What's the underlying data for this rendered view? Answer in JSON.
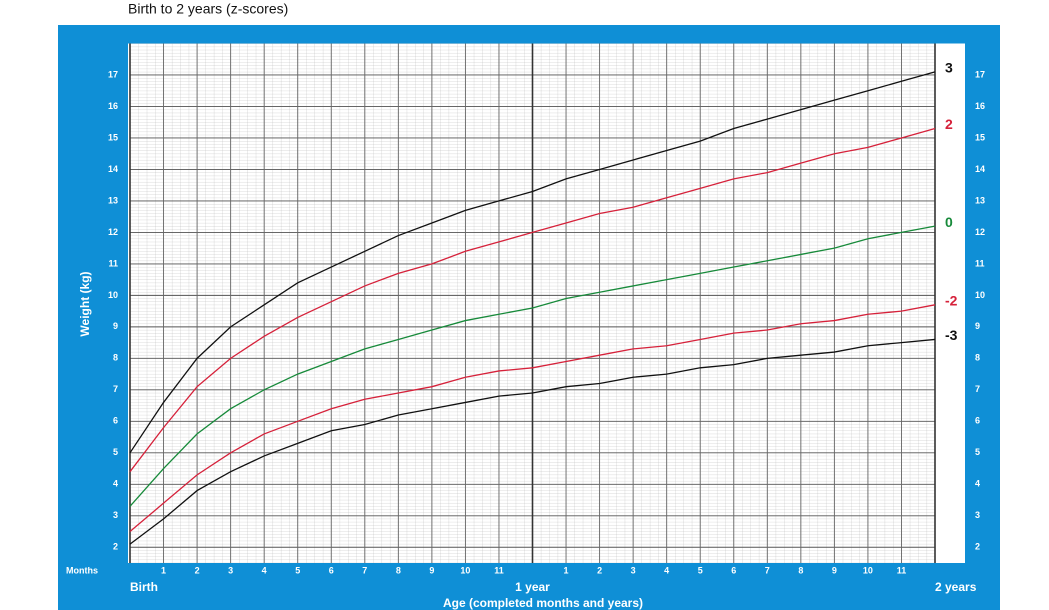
{
  "chart_data": {
    "type": "line",
    "subtitle": "Birth to 2 years (z-scores)",
    "x_label": "Age (completed months and years)",
    "y_label": "Weight (kg)",
    "x_unit_label": "Months",
    "x": [
      0,
      1,
      2,
      3,
      4,
      5,
      6,
      7,
      8,
      9,
      10,
      11,
      12,
      13,
      14,
      15,
      16,
      17,
      18,
      19,
      20,
      21,
      22,
      23,
      24
    ],
    "xlim": [
      0,
      24
    ],
    "ylim": [
      1.5,
      18
    ],
    "xticks": [
      {
        "value": 0,
        "label": "Birth"
      },
      1,
      2,
      3,
      4,
      5,
      6,
      7,
      8,
      9,
      10,
      11,
      {
        "value": 12,
        "label": "1 year"
      },
      {
        "value": 13,
        "label": "1"
      },
      {
        "value": 14,
        "label": "2"
      },
      {
        "value": 15,
        "label": "3"
      },
      {
        "value": 16,
        "label": "4"
      },
      {
        "value": 17,
        "label": "5"
      },
      {
        "value": 18,
        "label": "6"
      },
      {
        "value": 19,
        "label": "7"
      },
      {
        "value": 20,
        "label": "8"
      },
      {
        "value": 21,
        "label": "9"
      },
      {
        "value": 22,
        "label": "10"
      },
      {
        "value": 23,
        "label": "11"
      },
      {
        "value": 24,
        "label": "2 years"
      }
    ],
    "yticks": [
      2,
      3,
      4,
      5,
      6,
      7,
      8,
      9,
      10,
      11,
      12,
      13,
      14,
      15,
      16,
      17
    ],
    "grid": true,
    "series": [
      {
        "name": "3",
        "color": "#111111",
        "values": [
          5.0,
          6.6,
          8.0,
          9.0,
          9.7,
          10.4,
          10.9,
          11.4,
          11.9,
          12.3,
          12.7,
          13.0,
          13.3,
          13.7,
          14.0,
          14.3,
          14.6,
          14.9,
          15.3,
          15.6,
          15.9,
          16.2,
          16.5,
          16.8,
          17.1
        ]
      },
      {
        "name": "2",
        "color": "#d6213a",
        "values": [
          4.4,
          5.8,
          7.1,
          8.0,
          8.7,
          9.3,
          9.8,
          10.3,
          10.7,
          11.0,
          11.4,
          11.7,
          12.0,
          12.3,
          12.6,
          12.8,
          13.1,
          13.4,
          13.7,
          13.9,
          14.2,
          14.5,
          14.7,
          15.0,
          15.3
        ]
      },
      {
        "name": "0",
        "color": "#178a3a",
        "values": [
          3.3,
          4.5,
          5.6,
          6.4,
          7.0,
          7.5,
          7.9,
          8.3,
          8.6,
          8.9,
          9.2,
          9.4,
          9.6,
          9.9,
          10.1,
          10.3,
          10.5,
          10.7,
          10.9,
          11.1,
          11.3,
          11.5,
          11.8,
          12.0,
          12.2
        ]
      },
      {
        "name": "-2",
        "color": "#d6213a",
        "values": [
          2.5,
          3.4,
          4.3,
          5.0,
          5.6,
          6.0,
          6.4,
          6.7,
          6.9,
          7.1,
          7.4,
          7.6,
          7.7,
          7.9,
          8.1,
          8.3,
          8.4,
          8.6,
          8.8,
          8.9,
          9.1,
          9.2,
          9.4,
          9.5,
          9.7
        ]
      },
      {
        "name": "-3",
        "color": "#111111",
        "values": [
          2.1,
          2.9,
          3.8,
          4.4,
          4.9,
          5.3,
          5.7,
          5.9,
          6.2,
          6.4,
          6.6,
          6.8,
          6.9,
          7.1,
          7.2,
          7.4,
          7.5,
          7.7,
          7.8,
          8.0,
          8.1,
          8.2,
          8.4,
          8.5,
          8.6
        ]
      }
    ]
  }
}
